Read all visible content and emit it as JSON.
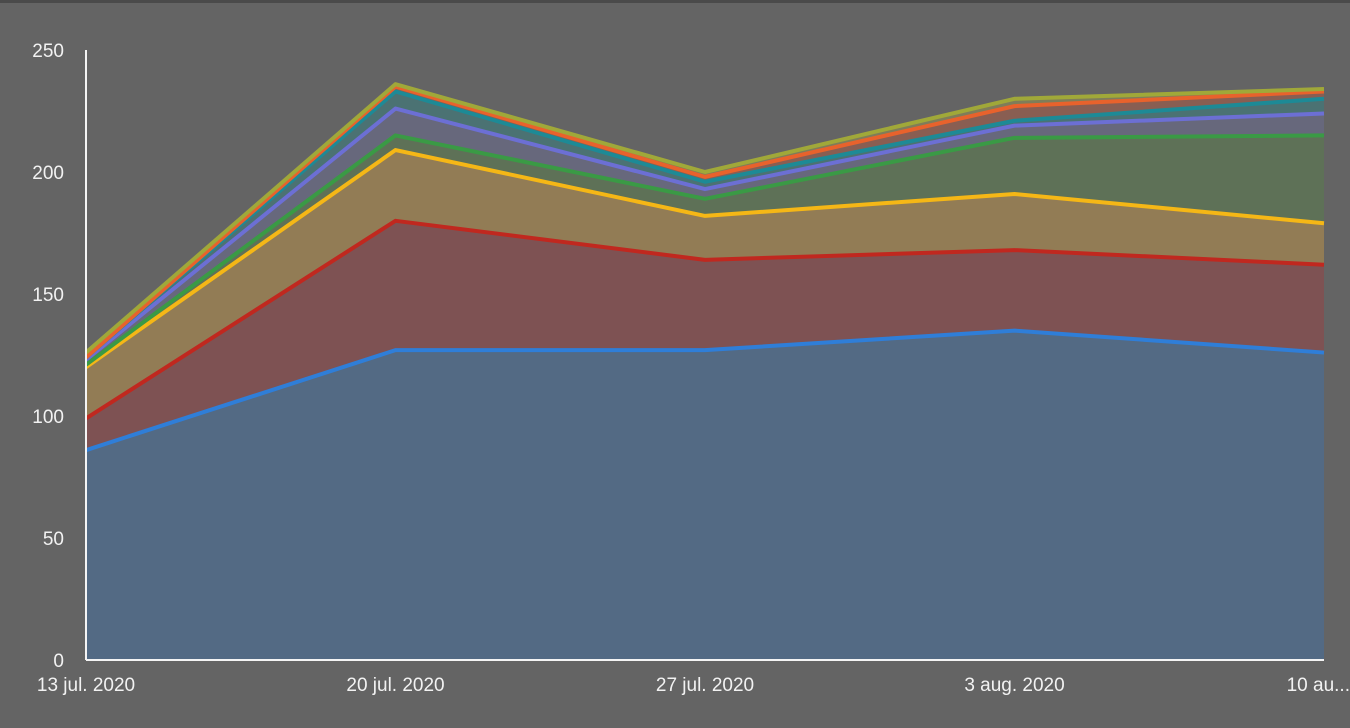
{
  "chart_data": {
    "type": "area",
    "stacked": true,
    "title": "",
    "xlabel": "",
    "ylabel": "",
    "categories": [
      "13 jul. 2020",
      "20 jul. 2020",
      "27 jul. 2020",
      "3 aug. 2020",
      "10 au..."
    ],
    "y_ticks": [
      "0",
      "50",
      "100",
      "150",
      "200",
      "250"
    ],
    "ylim": [
      0,
      250
    ],
    "grid": false,
    "legend": "none",
    "series": [
      {
        "color": "#2f7ed8",
        "fill": "#536a84",
        "values": [
          86,
          127,
          127,
          135,
          126
        ]
      },
      {
        "color": "#c0281f",
        "fill": "#7e5253",
        "values": [
          13,
          53,
          37,
          33,
          36
        ]
      },
      {
        "color": "#f5b716",
        "fill": "#927c55",
        "values": [
          21,
          29,
          18,
          23,
          17
        ]
      },
      {
        "color": "#3a9a45",
        "fill": "#5e7157",
        "values": [
          1,
          6,
          7,
          23,
          36
        ]
      },
      {
        "color": "#6c6fd4",
        "fill": "#67687c",
        "values": [
          2,
          11,
          4,
          5,
          9
        ]
      },
      {
        "color": "#1d8a96",
        "fill": "#4b7273",
        "values": [
          1,
          7,
          3,
          2,
          6
        ]
      },
      {
        "color": "#e8622c",
        "fill": "#895e52",
        "values": [
          0,
          2,
          2,
          6,
          3
        ]
      },
      {
        "color": "#a0a839",
        "fill": "#7f7d59",
        "values": [
          2,
          1,
          2,
          3,
          1
        ]
      }
    ]
  }
}
